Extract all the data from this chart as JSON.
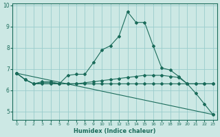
{
  "title": "",
  "xlabel": "Humidex (Indice chaleur)",
  "background_color": "#cce8e4",
  "grid_color": "#99cccc",
  "line_color": "#1a6b5a",
  "xlim": [
    -0.5,
    23.5
  ],
  "ylim": [
    4.6,
    10.1
  ],
  "yticks": [
    5,
    6,
    7,
    8,
    9,
    10
  ],
  "xticks": [
    0,
    1,
    2,
    3,
    4,
    5,
    6,
    7,
    8,
    9,
    10,
    11,
    12,
    13,
    14,
    15,
    16,
    17,
    18,
    19,
    20,
    21,
    22,
    23
  ],
  "lines": [
    {
      "x": [
        0,
        1,
        2,
        3,
        4,
        5,
        6,
        7,
        8,
        9,
        10,
        11,
        12,
        13,
        14,
        15,
        16,
        17,
        18,
        19,
        20,
        21,
        22,
        23
      ],
      "y": [
        6.8,
        6.5,
        6.3,
        6.4,
        6.4,
        6.3,
        6.7,
        6.75,
        6.75,
        7.3,
        7.9,
        8.1,
        8.55,
        9.7,
        9.2,
        9.2,
        8.1,
        7.05,
        6.95,
        6.65,
        6.3,
        5.85,
        5.35,
        4.85
      ],
      "marker": true
    },
    {
      "x": [
        0,
        1,
        2,
        3,
        4,
        5,
        6,
        7,
        8,
        9,
        10,
        11,
        12,
        13,
        14,
        15,
        16,
        17,
        18,
        19,
        20,
        21,
        22,
        23
      ],
      "y": [
        6.8,
        6.5,
        6.3,
        6.35,
        6.35,
        6.3,
        6.3,
        6.3,
        6.35,
        6.4,
        6.45,
        6.5,
        6.55,
        6.6,
        6.65,
        6.7,
        6.7,
        6.7,
        6.65,
        6.6,
        6.3,
        6.3,
        6.3,
        6.3
      ],
      "marker": true
    },
    {
      "x": [
        0,
        1,
        2,
        3,
        4,
        5,
        6,
        7,
        8,
        9,
        10,
        11,
        12,
        13,
        14,
        15,
        16,
        17,
        18,
        19,
        20,
        21,
        22,
        23
      ],
      "y": [
        6.8,
        6.5,
        6.3,
        6.3,
        6.3,
        6.3,
        6.3,
        6.3,
        6.3,
        6.3,
        6.3,
        6.3,
        6.3,
        6.3,
        6.3,
        6.3,
        6.3,
        6.3,
        6.3,
        6.3,
        6.3,
        6.3,
        6.3,
        6.3
      ],
      "marker": true
    },
    {
      "x": [
        0,
        23
      ],
      "y": [
        6.8,
        4.85
      ],
      "marker": true
    }
  ]
}
